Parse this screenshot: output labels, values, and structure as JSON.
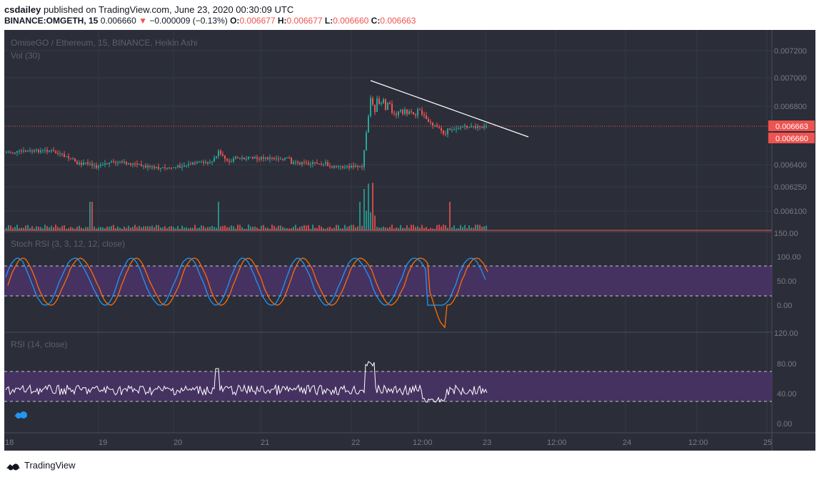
{
  "header": {
    "author": "csdailey",
    "published_text": "published on TradingView.com, June 23, 2020 00:30:09 UTC",
    "symbol": "BINANCE:OMGETH, 15",
    "last_value": "0.006660",
    "change": "−0.000009 (−0.13%)",
    "o_label": "O:",
    "o_value": "0.006677",
    "h_label": "H:",
    "h_value": "0.006677",
    "l_label": "L:",
    "l_value": "0.006660",
    "c_label": "C:",
    "c_value": "0.006663"
  },
  "main_pane": {
    "title": "OmiseGO / Ethereum, 15, BINANCE, Heikin Ashi",
    "vol_label": "Vol (30)",
    "price_axis": [
      "0.007200",
      "0.007000",
      "0.006800",
      "0.006400",
      "0.006250",
      "0.006100"
    ],
    "price_tags": [
      "0.006663",
      "0.006660"
    ],
    "vol_axis": "150.00"
  },
  "stoch_pane": {
    "title": "Stoch RSI (3, 3, 12, 12, close)",
    "axis": [
      "100.00",
      "50.00",
      "0.00"
    ]
  },
  "rsi_pane": {
    "title": "RSI (14, close)",
    "axis": [
      "120.00",
      "80.00",
      "40.00",
      "0.00"
    ]
  },
  "time_axis": [
    "18",
    "19",
    "20",
    "21",
    "22",
    "12:00",
    "23",
    "12:00",
    "24",
    "12:00",
    "25"
  ],
  "footer": {
    "brand": "TradingView"
  },
  "colors": {
    "background": "#2b2e39",
    "up": "#26a69a",
    "down": "#ef5350",
    "band_fill": "#4a3269",
    "stoch_k": "#2196f3",
    "stoch_d": "#ff6d00"
  }
}
